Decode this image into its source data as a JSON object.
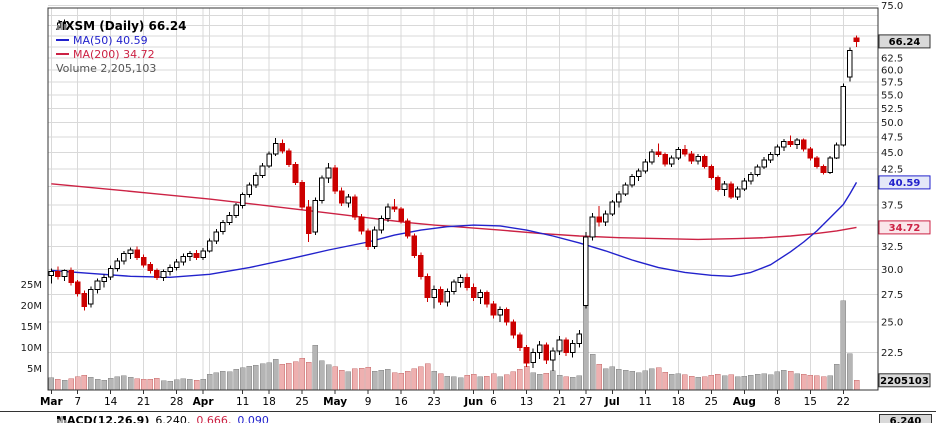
{
  "header": {
    "symbol_line": "AXSM (Daily) 66.24",
    "ma50_line": "MA(50) 40.59",
    "ma200_line": "MA(200) 34.72",
    "volume_line": "Volume 2,205,103"
  },
  "colors": {
    "up": "#000000",
    "up_fill": "#ffffff",
    "down": "#cc0000",
    "ma50": "#2222cc",
    "ma200": "#cc2244",
    "vol_up": "#b5b5b5",
    "vol_up_stroke": "#848484",
    "vol_down": "#eeb0b0",
    "vol_down_stroke": "#c46a6a",
    "grid": "#d9d9d9",
    "axis": "#333333",
    "text": "#1a1a1a",
    "box_gray_bg": "#d9d9d9",
    "box_ma50_bg": "#e4e8f8",
    "box_ma200_bg": "#fae6ea"
  },
  "axes": {
    "price_labels": [
      {
        "v": 22.5,
        "l": "22.5"
      },
      {
        "v": 25,
        "l": "25.0"
      },
      {
        "v": 27.5,
        "l": "27.5"
      },
      {
        "v": 30,
        "l": "30.0"
      },
      {
        "v": 32.5,
        "l": "32.5"
      },
      {
        "v": 37.5,
        "l": "37.5"
      },
      {
        "v": 42.5,
        "l": "42.5"
      },
      {
        "v": 45,
        "l": "45.0"
      },
      {
        "v": 47.5,
        "l": "47.5"
      },
      {
        "v": 50,
        "l": "50.0"
      },
      {
        "v": 52.5,
        "l": "52.5"
      },
      {
        "v": 55,
        "l": "55.0"
      },
      {
        "v": 57.5,
        "l": "57.5"
      },
      {
        "v": 60,
        "l": "60.0"
      },
      {
        "v": 62.5,
        "l": "62.5"
      },
      {
        "v": 75,
        "l": "75.0"
      }
    ],
    "grid_prices": [
      22.5,
      25,
      27.5,
      30,
      32.5,
      35,
      37.5,
      40,
      42.5,
      45,
      47.5,
      50,
      52.5,
      55,
      57.5,
      60,
      62.5,
      65,
      67.5,
      70,
      72.5,
      75
    ],
    "volume_labels": [
      {
        "v": 5,
        "l": "5M"
      },
      {
        "v": 10,
        "l": "10M"
      },
      {
        "v": 15,
        "l": "15M"
      },
      {
        "v": 20,
        "l": "20M"
      },
      {
        "v": 25,
        "l": "25M"
      }
    ],
    "x_ticks": [
      {
        "i": 0,
        "l": "Mar",
        "b": 1
      },
      {
        "i": 4,
        "l": "7"
      },
      {
        "i": 9,
        "l": "14"
      },
      {
        "i": 14,
        "l": "21"
      },
      {
        "i": 19,
        "l": "28"
      },
      {
        "i": 23,
        "l": "Apr",
        "b": 1
      },
      {
        "i": 29,
        "l": "11"
      },
      {
        "i": 33,
        "l": "18"
      },
      {
        "i": 38,
        "l": "25"
      },
      {
        "i": 43,
        "l": "May",
        "b": 1
      },
      {
        "i": 48,
        "l": "9"
      },
      {
        "i": 53,
        "l": "16"
      },
      {
        "i": 58,
        "l": "23"
      },
      {
        "i": 64,
        "l": "Jun",
        "b": 1
      },
      {
        "i": 67,
        "l": "6"
      },
      {
        "i": 72,
        "l": "13"
      },
      {
        "i": 77,
        "l": "21"
      },
      {
        "i": 81,
        "l": "27"
      },
      {
        "i": 85,
        "l": "Jul",
        "b": 1
      },
      {
        "i": 90,
        "l": "11"
      },
      {
        "i": 95,
        "l": "18"
      },
      {
        "i": 100,
        "l": "25"
      },
      {
        "i": 105,
        "l": "Aug",
        "b": 1
      },
      {
        "i": 110,
        "l": "8"
      },
      {
        "i": 115,
        "l": "15"
      },
      {
        "i": 120,
        "l": "22"
      }
    ],
    "grid_indices": [
      0,
      4,
      9,
      14,
      19,
      23,
      24,
      29,
      33,
      38,
      43,
      48,
      53,
      58,
      63,
      64,
      67,
      72,
      77,
      81,
      85,
      86,
      90,
      95,
      100,
      105,
      110,
      115,
      120
    ]
  },
  "value_boxes": {
    "last_price": "66.24",
    "ma50": "40.59",
    "ma200": "34.72",
    "volume": "2205103"
  },
  "footer": {
    "indicator_label": "MACD(12,26,9)",
    "values": [
      "6.240,",
      "0.666,",
      "0.090"
    ],
    "last_value_box": "6.240"
  },
  "chart_data": {
    "type": "candlestick",
    "symbol": "AXSM",
    "timeframe": "Daily",
    "scale": "log",
    "last_close": 66.24,
    "ma50_last": 40.59,
    "ma200_last": 34.72,
    "last_volume": 2205103,
    "volume_unit": "millions",
    "price_axis_range": [
      19.7,
      76
    ],
    "dates": [
      "3/1",
      "3/2",
      "3/3",
      "3/4",
      "3/7",
      "3/8",
      "3/9",
      "3/10",
      "3/11",
      "3/14",
      "3/15",
      "3/16",
      "3/17",
      "3/18",
      "3/21",
      "3/22",
      "3/23",
      "3/24",
      "3/25",
      "3/28",
      "3/29",
      "3/30",
      "3/31",
      "4/1",
      "4/4",
      "4/5",
      "4/6",
      "4/7",
      "4/8",
      "4/11",
      "4/12",
      "4/13",
      "4/14",
      "4/18",
      "4/19",
      "4/20",
      "4/21",
      "4/22",
      "4/25",
      "4/26",
      "4/27",
      "4/28",
      "4/29",
      "5/2",
      "5/3",
      "5/4",
      "5/5",
      "5/6",
      "5/9",
      "5/10",
      "5/11",
      "5/12",
      "5/13",
      "5/16",
      "5/17",
      "5/18",
      "5/19",
      "5/20",
      "5/23",
      "5/24",
      "5/25",
      "5/26",
      "5/27",
      "5/31",
      "6/1",
      "6/2",
      "6/3",
      "6/6",
      "6/7",
      "6/8",
      "6/9",
      "6/10",
      "6/13",
      "6/14",
      "6/15",
      "6/16",
      "6/17",
      "6/21",
      "6/22",
      "6/23",
      "6/24",
      "6/27",
      "6/28",
      "6/29",
      "6/30",
      "7/1",
      "7/5",
      "7/6",
      "7/7",
      "7/8",
      "7/11",
      "7/12",
      "7/13",
      "7/14",
      "7/15",
      "7/18",
      "7/19",
      "7/20",
      "7/21",
      "7/22",
      "7/25",
      "7/26",
      "7/27",
      "7/28",
      "7/29",
      "8/1",
      "8/2",
      "8/3",
      "8/4",
      "8/5",
      "8/8",
      "8/9",
      "8/10",
      "8/11",
      "8/12",
      "8/15",
      "8/16",
      "8/17",
      "8/18",
      "8/19",
      "8/22",
      "8/23",
      "8/24"
    ],
    "ohlcv": [
      [
        29.4,
        30.1,
        28.6,
        29.8,
        2.8
      ],
      [
        29.8,
        30.3,
        29.0,
        29.3,
        2.4
      ],
      [
        29.3,
        30.0,
        28.8,
        29.9,
        2.2
      ],
      [
        29.9,
        30.2,
        28.4,
        28.7,
        2.6
      ],
      [
        28.7,
        28.9,
        27.3,
        27.6,
        3.1
      ],
      [
        27.6,
        27.9,
        26.0,
        26.4,
        3.4
      ],
      [
        26.6,
        28.3,
        26.3,
        28.0,
        2.9
      ],
      [
        28.0,
        29.1,
        27.6,
        28.8,
        2.5
      ],
      [
        28.8,
        29.5,
        28.2,
        29.2,
        2.2
      ],
      [
        29.2,
        30.4,
        28.9,
        30.1,
        2.7
      ],
      [
        30.1,
        31.2,
        29.8,
        30.9,
        3.0
      ],
      [
        30.9,
        32.0,
        30.5,
        31.7,
        3.3
      ],
      [
        31.7,
        32.4,
        31.1,
        32.1,
        2.9
      ],
      [
        32.1,
        32.5,
        31.0,
        31.3,
        2.6
      ],
      [
        31.3,
        31.6,
        30.2,
        30.5,
        2.4
      ],
      [
        30.5,
        30.8,
        29.6,
        29.9,
        2.5
      ],
      [
        29.9,
        30.1,
        28.9,
        29.2,
        2.7
      ],
      [
        29.2,
        30.0,
        28.8,
        29.8,
        2.1
      ],
      [
        29.8,
        30.5,
        29.4,
        30.2,
        2.0
      ],
      [
        30.2,
        31.1,
        29.9,
        30.8,
        2.3
      ],
      [
        30.8,
        31.7,
        30.4,
        31.4,
        2.6
      ],
      [
        31.4,
        32.0,
        30.9,
        31.7,
        2.4
      ],
      [
        31.7,
        32.1,
        31.0,
        31.3,
        2.2
      ],
      [
        31.3,
        32.3,
        31.0,
        32.0,
        2.5
      ],
      [
        32.0,
        33.4,
        31.8,
        33.1,
        3.6
      ],
      [
        33.1,
        34.5,
        32.8,
        34.2,
        4.0
      ],
      [
        34.2,
        35.6,
        33.9,
        35.3,
        4.4
      ],
      [
        35.3,
        36.6,
        35.0,
        36.2,
        4.2
      ],
      [
        36.2,
        37.8,
        35.9,
        37.5,
        4.8
      ],
      [
        37.5,
        39.2,
        37.1,
        38.9,
        5.2
      ],
      [
        38.9,
        40.6,
        38.5,
        40.2,
        5.5
      ],
      [
        40.2,
        42.0,
        39.8,
        41.6,
        5.8
      ],
      [
        41.6,
        43.4,
        41.2,
        43.0,
        6.1
      ],
      [
        43.0,
        45.2,
        42.7,
        44.8,
        6.4
      ],
      [
        44.8,
        47.4,
        44.5,
        46.5,
        7.2
      ],
      [
        46.5,
        47.1,
        44.9,
        45.3,
        6.0
      ],
      [
        45.3,
        45.7,
        42.8,
        43.2,
        6.3
      ],
      [
        43.2,
        43.6,
        40.2,
        40.6,
        6.6
      ],
      [
        40.6,
        40.9,
        36.9,
        37.3,
        7.4
      ],
      [
        37.3,
        38.2,
        33.0,
        34.0,
        6.5
      ],
      [
        34.2,
        38.5,
        33.8,
        38.1,
        10.6
      ],
      [
        38.1,
        41.6,
        37.7,
        41.2,
        6.8
      ],
      [
        41.2,
        43.4,
        40.5,
        42.7,
        5.9
      ],
      [
        42.7,
        43.1,
        39.0,
        39.4,
        5.4
      ],
      [
        39.4,
        39.9,
        37.4,
        37.8,
        4.6
      ],
      [
        37.8,
        39.0,
        37.2,
        38.6,
        4.2
      ],
      [
        38.6,
        38.9,
        35.6,
        36.0,
        4.9
      ],
      [
        36.0,
        36.4,
        33.9,
        34.3,
        5.1
      ],
      [
        34.3,
        34.6,
        32.1,
        32.5,
        5.3
      ],
      [
        32.5,
        34.8,
        32.2,
        34.4,
        4.4
      ],
      [
        34.4,
        36.2,
        34.0,
        35.8,
        4.6
      ],
      [
        35.8,
        37.7,
        35.4,
        37.3,
        4.8
      ],
      [
        37.3,
        38.3,
        36.6,
        37.0,
        4.0
      ],
      [
        37.0,
        37.3,
        35.2,
        35.5,
        3.9
      ],
      [
        35.5,
        35.8,
        33.4,
        33.7,
        4.3
      ],
      [
        33.7,
        34.0,
        31.2,
        31.5,
        5.0
      ],
      [
        31.5,
        31.8,
        29.0,
        29.3,
        5.4
      ],
      [
        29.3,
        29.6,
        26.8,
        27.2,
        6.2
      ],
      [
        27.2,
        28.4,
        26.2,
        28.0,
        4.4
      ],
      [
        28.0,
        28.3,
        26.5,
        26.8,
        3.8
      ],
      [
        26.8,
        28.1,
        26.4,
        27.8,
        3.2
      ],
      [
        27.8,
        29.0,
        27.5,
        28.7,
        3.0
      ],
      [
        28.7,
        29.5,
        28.2,
        29.2,
        2.8
      ],
      [
        29.2,
        29.6,
        27.9,
        28.2,
        3.4
      ],
      [
        28.2,
        28.6,
        26.9,
        27.2,
        3.6
      ],
      [
        27.2,
        28.0,
        26.6,
        27.7,
        3.0
      ],
      [
        27.7,
        27.9,
        26.3,
        26.6,
        3.2
      ],
      [
        26.6,
        26.9,
        25.3,
        25.6,
        3.8
      ],
      [
        25.6,
        26.4,
        25.0,
        26.1,
        3.1
      ],
      [
        26.1,
        26.3,
        24.7,
        25.0,
        3.5
      ],
      [
        25.0,
        25.2,
        23.6,
        23.9,
        4.2
      ],
      [
        23.9,
        24.1,
        22.6,
        22.9,
        4.8
      ],
      [
        22.9,
        23.1,
        21.4,
        21.7,
        5.6
      ],
      [
        21.7,
        22.8,
        21.3,
        22.5,
        4.0
      ],
      [
        22.5,
        23.4,
        22.0,
        23.1,
        3.6
      ],
      [
        23.1,
        23.3,
        21.6,
        21.9,
        3.9
      ],
      [
        21.9,
        22.9,
        21.1,
        22.6,
        4.5
      ],
      [
        22.6,
        23.8,
        22.3,
        23.5,
        3.4
      ],
      [
        23.5,
        23.7,
        22.2,
        22.5,
        3.0
      ],
      [
        22.5,
        23.5,
        22.1,
        23.2,
        2.9
      ],
      [
        23.2,
        24.3,
        22.9,
        24.0,
        3.3
      ],
      [
        26.5,
        34.2,
        26.2,
        33.6,
        22.6
      ],
      [
        33.6,
        36.5,
        33.2,
        36.0,
        8.4
      ],
      [
        36.0,
        37.4,
        34.8,
        35.4,
        6.0
      ],
      [
        35.4,
        36.8,
        34.9,
        36.4,
        5.0
      ],
      [
        36.4,
        38.2,
        36.1,
        37.9,
        5.4
      ],
      [
        37.9,
        39.4,
        37.2,
        39.0,
        4.8
      ],
      [
        39.0,
        40.6,
        38.7,
        40.2,
        4.6
      ],
      [
        40.2,
        41.8,
        39.9,
        41.4,
        4.4
      ],
      [
        41.4,
        42.6,
        40.8,
        42.2,
        4.0
      ],
      [
        42.2,
        44.0,
        41.9,
        43.6,
        4.5
      ],
      [
        43.6,
        45.6,
        43.2,
        45.1,
        4.9
      ],
      [
        45.1,
        46.5,
        44.3,
        44.7,
        5.2
      ],
      [
        44.7,
        45.0,
        42.9,
        43.3,
        4.1
      ],
      [
        43.3,
        44.6,
        42.8,
        44.2,
        3.6
      ],
      [
        44.2,
        45.9,
        43.9,
        45.5,
        3.8
      ],
      [
        45.5,
        46.2,
        44.4,
        44.8,
        3.5
      ],
      [
        44.8,
        45.3,
        43.3,
        43.7,
        3.2
      ],
      [
        43.7,
        44.8,
        43.2,
        44.4,
        2.9
      ],
      [
        44.4,
        44.7,
        42.6,
        42.9,
        3.1
      ],
      [
        42.9,
        43.2,
        41.0,
        41.3,
        3.4
      ],
      [
        41.3,
        41.6,
        39.3,
        39.6,
        3.7
      ],
      [
        39.6,
        40.8,
        38.7,
        40.4,
        3.3
      ],
      [
        40.4,
        40.7,
        38.3,
        38.6,
        3.5
      ],
      [
        38.6,
        40.0,
        38.2,
        39.7,
        3.0
      ],
      [
        39.7,
        41.2,
        39.4,
        40.8,
        3.2
      ],
      [
        40.8,
        42.1,
        40.3,
        41.7,
        3.4
      ],
      [
        41.7,
        43.2,
        41.4,
        42.8,
        3.6
      ],
      [
        42.8,
        44.3,
        42.5,
        43.9,
        3.8
      ],
      [
        43.9,
        45.1,
        43.4,
        44.7,
        3.5
      ],
      [
        44.7,
        46.3,
        44.4,
        45.9,
        4.2
      ],
      [
        45.9,
        47.2,
        45.3,
        46.8,
        4.6
      ],
      [
        46.8,
        47.8,
        45.9,
        46.3,
        4.4
      ],
      [
        46.3,
        47.4,
        45.6,
        47.0,
        3.8
      ],
      [
        47.0,
        47.3,
        45.2,
        45.6,
        3.6
      ],
      [
        45.6,
        45.9,
        43.8,
        44.2,
        3.4
      ],
      [
        44.2,
        44.5,
        42.6,
        42.9,
        3.3
      ],
      [
        42.9,
        43.2,
        41.7,
        42.0,
        3.1
      ],
      [
        42.0,
        44.5,
        41.8,
        44.2,
        3.3
      ],
      [
        44.2,
        46.6,
        44.0,
        46.2,
        6.0
      ],
      [
        46.2,
        57.2,
        46.0,
        56.6,
        21.2
      ],
      [
        58.5,
        64.8,
        57.6,
        64.2,
        8.5
      ],
      [
        67.0,
        67.6,
        65.0,
        66.24,
        2.2
      ]
    ],
    "ma50_points": [
      [
        0,
        29.9
      ],
      [
        6,
        29.6
      ],
      [
        12,
        29.3
      ],
      [
        18,
        29.2
      ],
      [
        24,
        29.5
      ],
      [
        30,
        30.2
      ],
      [
        36,
        31.1
      ],
      [
        42,
        32.1
      ],
      [
        48,
        33.0
      ],
      [
        52,
        33.8
      ],
      [
        56,
        34.4
      ],
      [
        60,
        34.8
      ],
      [
        64,
        35.0
      ],
      [
        68,
        34.9
      ],
      [
        72,
        34.4
      ],
      [
        76,
        33.7
      ],
      [
        80,
        32.9
      ],
      [
        84,
        32.0
      ],
      [
        88,
        31.0
      ],
      [
        92,
        30.2
      ],
      [
        96,
        29.7
      ],
      [
        100,
        29.4
      ],
      [
        103,
        29.3
      ],
      [
        106,
        29.7
      ],
      [
        109,
        30.5
      ],
      [
        112,
        31.9
      ],
      [
        114,
        33.0
      ],
      [
        116,
        34.3
      ],
      [
        118,
        35.9
      ],
      [
        120,
        37.6
      ],
      [
        121,
        39.0
      ],
      [
        122,
        40.59
      ]
    ],
    "ma200_points": [
      [
        0,
        40.4
      ],
      [
        8,
        39.7
      ],
      [
        16,
        39.0
      ],
      [
        24,
        38.3
      ],
      [
        32,
        37.5
      ],
      [
        40,
        36.7
      ],
      [
        48,
        35.9
      ],
      [
        54,
        35.3
      ],
      [
        58,
        35.0
      ],
      [
        63,
        34.7
      ],
      [
        68,
        34.4
      ],
      [
        74,
        34.0
      ],
      [
        80,
        33.7
      ],
      [
        86,
        33.5
      ],
      [
        92,
        33.4
      ],
      [
        98,
        33.3
      ],
      [
        104,
        33.4
      ],
      [
        108,
        33.5
      ],
      [
        112,
        33.7
      ],
      [
        116,
        34.0
      ],
      [
        119,
        34.3
      ],
      [
        122,
        34.72
      ]
    ]
  }
}
